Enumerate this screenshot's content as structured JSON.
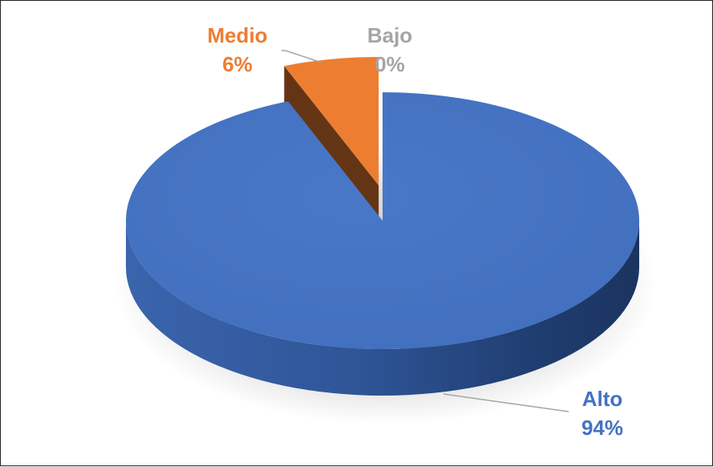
{
  "chart_data": {
    "type": "pie",
    "categories": [
      "Alto",
      "Medio",
      "Bajo"
    ],
    "values": [
      94,
      6,
      0
    ],
    "value_labels": [
      "94%",
      "6%",
      "0%"
    ],
    "colors": [
      "#4472C4",
      "#ED7D31",
      "#A5A5A5"
    ],
    "title": "",
    "legend": "none",
    "style": "3d-exploded"
  }
}
